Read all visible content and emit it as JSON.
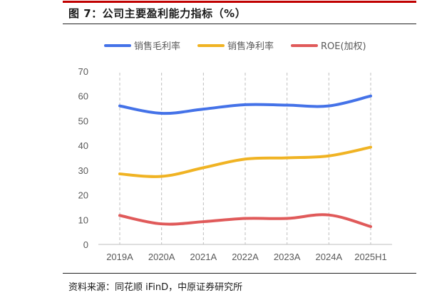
{
  "header": {
    "title": "图 7：公司主要盈利能力指标（%）"
  },
  "footer": {
    "source": "资料来源：同花顺 iFinD，中原证券研究所"
  },
  "chart_data": {
    "type": "line",
    "categories": [
      "2019A",
      "2020A",
      "2021A",
      "2022A",
      "2023A",
      "2024A",
      "2025H1"
    ],
    "ylim": [
      0,
      70
    ],
    "yticks": [
      0,
      10,
      20,
      30,
      40,
      50,
      60,
      70
    ],
    "grid": false,
    "legend_position": "top",
    "series": [
      {
        "name": "销售毛利率",
        "color": "#4472e8",
        "values": [
          56.0,
          53.0,
          54.7,
          56.5,
          56.3,
          56.0,
          60.0
        ]
      },
      {
        "name": "销售净利率",
        "color": "#f0b323",
        "values": [
          28.5,
          27.5,
          31.0,
          34.5,
          35.0,
          35.8,
          39.3
        ]
      },
      {
        "name": "ROE(加权)",
        "color": "#e05a5a",
        "values": [
          11.7,
          8.3,
          9.2,
          10.5,
          10.5,
          11.9,
          7.2
        ]
      }
    ]
  }
}
